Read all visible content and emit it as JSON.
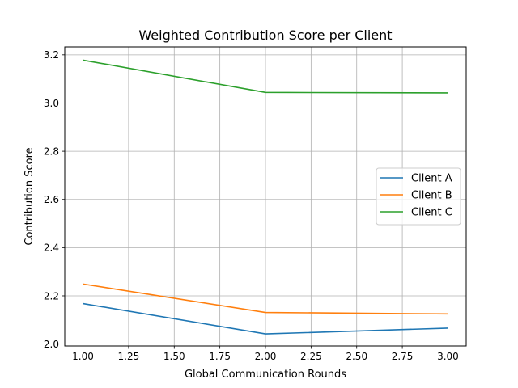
{
  "chart_data": {
    "type": "line",
    "title": "Weighted Contribution Score per Client",
    "xlabel": "Global Communication Rounds",
    "ylabel": "Contribution Score",
    "x": [
      1,
      2,
      3
    ],
    "xlim": [
      0.9,
      3.1
    ],
    "ylim": [
      1.992,
      3.233
    ],
    "xticks": [
      "1.00",
      "1.25",
      "1.50",
      "1.75",
      "2.00",
      "2.25",
      "2.50",
      "2.75",
      "3.00"
    ],
    "yticks": [
      "2.0",
      "2.2",
      "2.4",
      "2.6",
      "2.8",
      "3.0",
      "3.2"
    ],
    "grid": true,
    "legend_position": "center-right",
    "series": [
      {
        "name": "Client A",
        "color": "#1f77b4",
        "values": [
          2.168,
          2.042,
          2.066
        ]
      },
      {
        "name": "Client B",
        "color": "#ff7f0e",
        "values": [
          2.249,
          2.131,
          2.125
        ]
      },
      {
        "name": "Client C",
        "color": "#2ca02c",
        "values": [
          3.178,
          3.044,
          3.042
        ]
      }
    ]
  }
}
